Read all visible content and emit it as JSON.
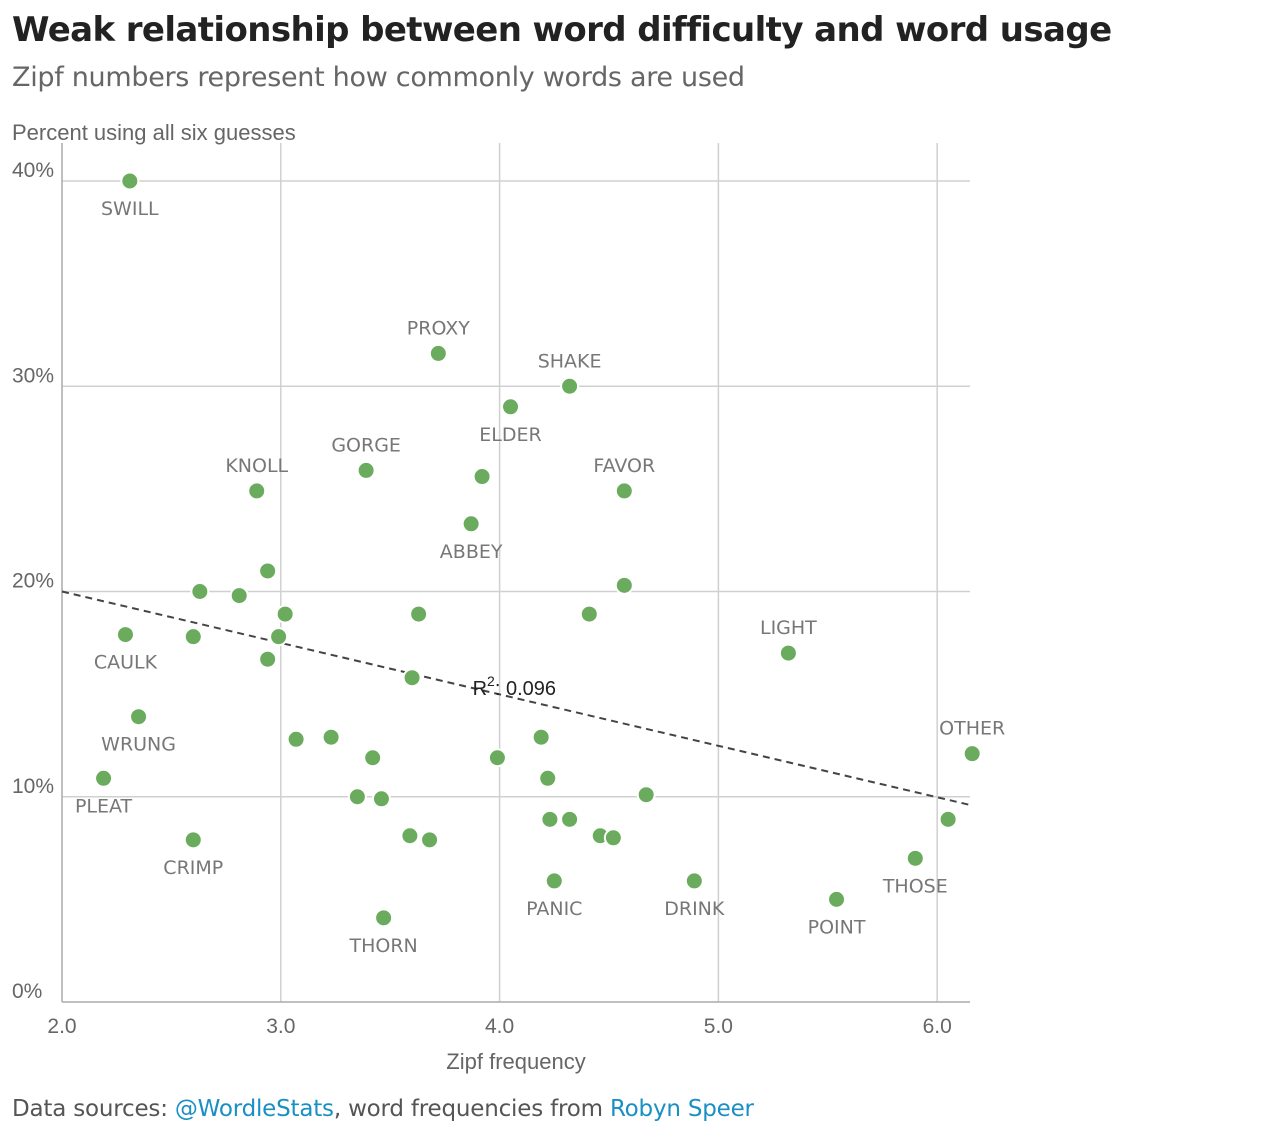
{
  "header": {
    "title": "Weak relationship between word difficulty and word usage",
    "subtitle": "Zipf numbers represent how commonly words are used"
  },
  "source": {
    "prefix": "Data sources: ",
    "link1": "@WordleStats",
    "middle": ", word frequencies from ",
    "link2": "Robyn Speer"
  },
  "colors": {
    "point": "#6aab5e",
    "link": "#1a8fc4",
    "trendline": "#444444"
  },
  "chart_data": {
    "type": "scatter",
    "xlabel": "Zipf frequency",
    "ylabel": "Percent using all six guesses",
    "xlim": [
      2.0,
      6.15
    ],
    "ylim": [
      0,
      40
    ],
    "xticks": [
      {
        "value": 2.0,
        "label": "2.0"
      },
      {
        "value": 3.0,
        "label": "3.0"
      },
      {
        "value": 4.0,
        "label": "4.0"
      },
      {
        "value": 5.0,
        "label": "5.0"
      },
      {
        "value": 6.0,
        "label": "6.0"
      }
    ],
    "yticks": [
      {
        "value": 0,
        "label": "0%"
      },
      {
        "value": 10,
        "label": "10%"
      },
      {
        "value": 20,
        "label": "20%"
      },
      {
        "value": 30,
        "label": "30%"
      },
      {
        "value": 40,
        "label": "40%"
      }
    ],
    "grid": true,
    "trendline": {
      "x": [
        2.0,
        6.15
      ],
      "y": [
        20.0,
        9.6
      ],
      "annotation_main": "R",
      "annotation_sup": "2",
      "annotation_rest": ": 0.096",
      "annotation_x": 4.0,
      "annotation_y": 15.5
    },
    "points": [
      {
        "x": 2.31,
        "y": 40.0,
        "label": "SWILL",
        "label_pos": "below"
      },
      {
        "x": 3.72,
        "y": 31.6,
        "label": "PROXY",
        "label_pos": "above"
      },
      {
        "x": 4.32,
        "y": 30.0,
        "label": "SHAKE",
        "label_pos": "above"
      },
      {
        "x": 4.05,
        "y": 29.0,
        "label": "ELDER",
        "label_pos": "below"
      },
      {
        "x": 3.39,
        "y": 25.9,
        "label": "GORGE",
        "label_pos": "above"
      },
      {
        "x": 3.92,
        "y": 25.6,
        "label": "",
        "label_pos": "none"
      },
      {
        "x": 2.89,
        "y": 24.9,
        "label": "KNOLL",
        "label_pos": "above"
      },
      {
        "x": 4.57,
        "y": 24.9,
        "label": "FAVOR",
        "label_pos": "above"
      },
      {
        "x": 3.87,
        "y": 23.3,
        "label": "ABBEY",
        "label_pos": "below"
      },
      {
        "x": 2.94,
        "y": 21.0,
        "label": "",
        "label_pos": "none"
      },
      {
        "x": 4.57,
        "y": 20.3,
        "label": "",
        "label_pos": "none"
      },
      {
        "x": 2.63,
        "y": 20.0,
        "label": "",
        "label_pos": "none"
      },
      {
        "x": 2.81,
        "y": 19.8,
        "label": "",
        "label_pos": "none"
      },
      {
        "x": 3.02,
        "y": 18.9,
        "label": "",
        "label_pos": "none"
      },
      {
        "x": 3.63,
        "y": 18.9,
        "label": "",
        "label_pos": "none"
      },
      {
        "x": 4.41,
        "y": 18.9,
        "label": "",
        "label_pos": "none"
      },
      {
        "x": 2.29,
        "y": 17.9,
        "label": "CAULK",
        "label_pos": "below"
      },
      {
        "x": 2.6,
        "y": 17.8,
        "label": "",
        "label_pos": "none"
      },
      {
        "x": 2.99,
        "y": 17.8,
        "label": "",
        "label_pos": "none"
      },
      {
        "x": 5.32,
        "y": 17.0,
        "label": "LIGHT",
        "label_pos": "above"
      },
      {
        "x": 2.94,
        "y": 16.7,
        "label": "",
        "label_pos": "none"
      },
      {
        "x": 3.6,
        "y": 15.8,
        "label": "",
        "label_pos": "none"
      },
      {
        "x": 2.35,
        "y": 13.9,
        "label": "WRUNG",
        "label_pos": "below"
      },
      {
        "x": 3.23,
        "y": 12.9,
        "label": "",
        "label_pos": "none"
      },
      {
        "x": 4.19,
        "y": 12.9,
        "label": "",
        "label_pos": "none"
      },
      {
        "x": 3.07,
        "y": 12.8,
        "label": "",
        "label_pos": "none"
      },
      {
        "x": 6.16,
        "y": 12.1,
        "label": "OTHER",
        "label_pos": "above"
      },
      {
        "x": 3.42,
        "y": 11.9,
        "label": "",
        "label_pos": "none"
      },
      {
        "x": 3.99,
        "y": 11.9,
        "label": "",
        "label_pos": "none"
      },
      {
        "x": 2.19,
        "y": 10.9,
        "label": "PLEAT",
        "label_pos": "below"
      },
      {
        "x": 4.22,
        "y": 10.9,
        "label": "",
        "label_pos": "none"
      },
      {
        "x": 4.67,
        "y": 10.1,
        "label": "",
        "label_pos": "none"
      },
      {
        "x": 3.35,
        "y": 10.0,
        "label": "",
        "label_pos": "none"
      },
      {
        "x": 3.46,
        "y": 9.9,
        "label": "",
        "label_pos": "none"
      },
      {
        "x": 4.23,
        "y": 8.9,
        "label": "",
        "label_pos": "none"
      },
      {
        "x": 4.32,
        "y": 8.9,
        "label": "",
        "label_pos": "none"
      },
      {
        "x": 6.05,
        "y": 8.9,
        "label": "",
        "label_pos": "none"
      },
      {
        "x": 4.46,
        "y": 8.1,
        "label": "",
        "label_pos": "none"
      },
      {
        "x": 4.52,
        "y": 8.0,
        "label": "",
        "label_pos": "none"
      },
      {
        "x": 3.59,
        "y": 8.1,
        "label": "",
        "label_pos": "none"
      },
      {
        "x": 3.68,
        "y": 7.9,
        "label": "",
        "label_pos": "none"
      },
      {
        "x": 2.6,
        "y": 7.9,
        "label": "CRIMP",
        "label_pos": "below"
      },
      {
        "x": 5.9,
        "y": 7.0,
        "label": "THOSE",
        "label_pos": "below"
      },
      {
        "x": 4.25,
        "y": 5.9,
        "label": "PANIC",
        "label_pos": "below"
      },
      {
        "x": 4.89,
        "y": 5.9,
        "label": "DRINK",
        "label_pos": "below"
      },
      {
        "x": 5.54,
        "y": 5.0,
        "label": "POINT",
        "label_pos": "below"
      },
      {
        "x": 3.47,
        "y": 4.1,
        "label": "THORN",
        "label_pos": "below"
      }
    ]
  }
}
